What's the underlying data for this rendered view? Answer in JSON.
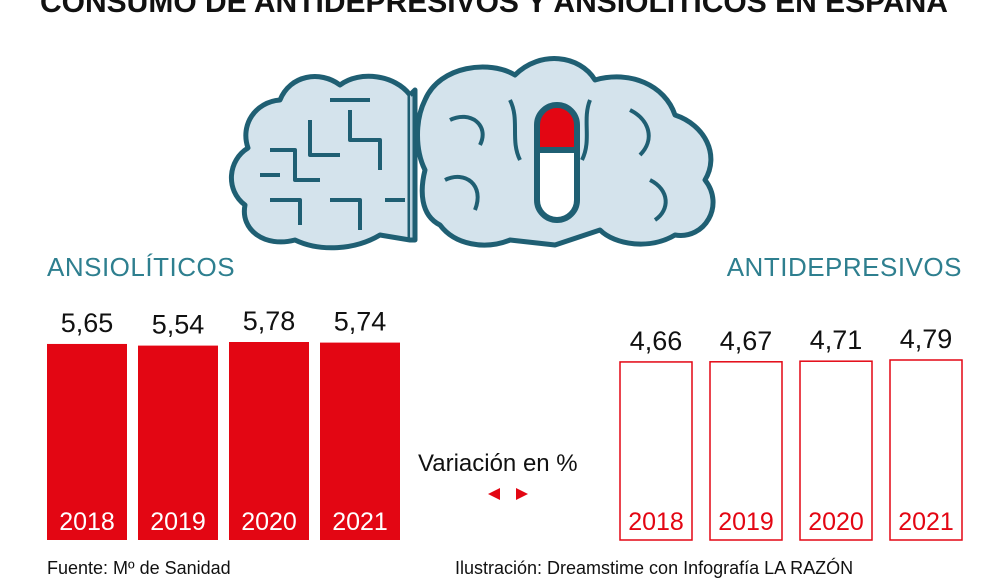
{
  "title": "CONSUMO DE ANTIDEPRESIVOS Y ANSIOLÍTICOS EN ESPAÑA",
  "colors": {
    "red": "#e30613",
    "teal": "#2e7f8f",
    "brain_fill": "#d4e3ec",
    "brain_stroke": "#1f5f73"
  },
  "legend": {
    "text": "Variación en %"
  },
  "footer": {
    "source": "Fuente: Mº de Sanidad",
    "credit": "Ilustración: Dreamstime con Infografía LA RAZÓN"
  },
  "chart_data": [
    {
      "type": "bar",
      "name": "ANSIOLÍTICOS",
      "categories": [
        "2018",
        "2019",
        "2020",
        "2021"
      ],
      "values": [
        5.65,
        5.54,
        5.78,
        5.74
      ],
      "value_labels": [
        "5,65",
        "5,54",
        "5,78",
        "5,74"
      ],
      "style": "filled",
      "color": "#e30613"
    },
    {
      "type": "bar",
      "name": "ANTIDEPRESIVOS",
      "categories": [
        "2018",
        "2019",
        "2020",
        "2021"
      ],
      "values": [
        4.66,
        4.67,
        4.71,
        4.79
      ],
      "value_labels": [
        "4,66",
        "4,67",
        "4,71",
        "4,79"
      ],
      "style": "outline",
      "color": "#e30613"
    }
  ]
}
